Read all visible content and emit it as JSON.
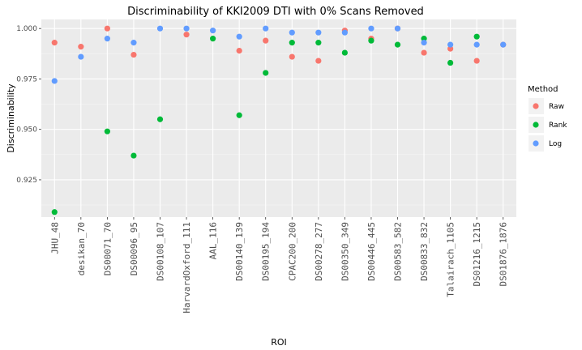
{
  "chart_data": {
    "type": "scatter",
    "title": "Discriminability of KKI2009 DTI with 0% Scans Removed",
    "xlabel": "ROI",
    "ylabel": "Discriminability",
    "ylim": [
      0.9065,
      1.0045
    ],
    "yticks": [
      0.925,
      0.95,
      0.975,
      1.0
    ],
    "ytick_labels": [
      "0.925",
      "0.950",
      "0.975",
      "1.000"
    ],
    "grid": true,
    "legend_position": "right",
    "legend_title": "Method",
    "categories": [
      "JHU_48",
      "desikan_70",
      "DS00071_70",
      "DS00096_95",
      "DS00108_107",
      "HarvardOxford_111",
      "AAL_116",
      "DS00140_139",
      "DS00195_194",
      "CPAC200_200",
      "DS00278_277",
      "DS00350_349",
      "DS00446_445",
      "DS00583_582",
      "DS00833_832",
      "Talairach_1105",
      "DS01216_1215",
      "DS01876_1876"
    ],
    "series": [
      {
        "name": "Raw",
        "color": "#F8766D",
        "values": [
          0.993,
          0.991,
          1.0,
          0.987,
          null,
          0.997,
          null,
          0.989,
          0.994,
          0.986,
          0.984,
          0.999,
          0.995,
          1.0,
          0.988,
          0.99,
          0.984,
          0.992
        ]
      },
      {
        "name": "Rank",
        "color": "#00BA38",
        "values": [
          0.909,
          null,
          0.949,
          0.937,
          0.955,
          null,
          0.995,
          0.957,
          0.978,
          0.993,
          0.993,
          0.988,
          0.994,
          0.992,
          0.995,
          0.983,
          0.996,
          null
        ]
      },
      {
        "name": "Log",
        "color": "#619CFF",
        "values": [
          0.974,
          0.986,
          0.995,
          0.993,
          1.0,
          1.0,
          0.999,
          0.996,
          1.0,
          0.998,
          0.998,
          0.998,
          1.0,
          1.0,
          0.993,
          0.992,
          0.992,
          0.992
        ]
      }
    ]
  }
}
